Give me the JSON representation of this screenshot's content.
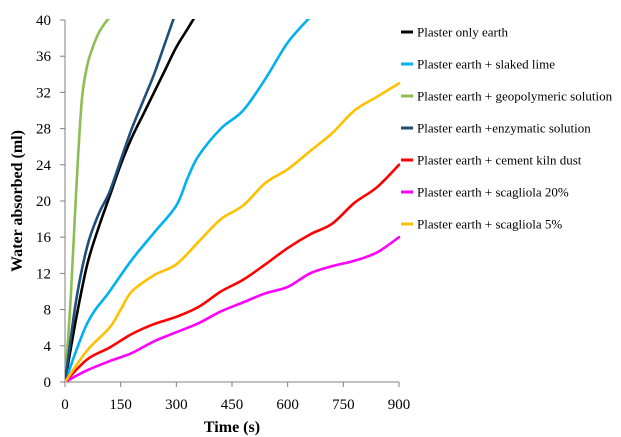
{
  "chart_data": {
    "type": "line",
    "title": "",
    "xlabel": "Time (s)",
    "ylabel": "Water absorbed (ml)",
    "xlim": [
      0,
      900
    ],
    "ylim": [
      0,
      40
    ],
    "xticks": [
      0,
      150,
      300,
      450,
      600,
      750,
      900
    ],
    "yticks": [
      0,
      4,
      8,
      12,
      16,
      20,
      24,
      28,
      32,
      36,
      40
    ],
    "grid": false,
    "legend_position": "right",
    "series": [
      {
        "name": "Plaster only earth",
        "color": "#000000",
        "x": [
          0,
          30,
          60,
          90,
          120,
          150,
          180,
          210,
          240,
          270,
          300,
          330,
          360
        ],
        "y": [
          0,
          7,
          13,
          17,
          20.5,
          24,
          27,
          29.5,
          32,
          34.5,
          37,
          39,
          41
        ]
      },
      {
        "name": "Plaster earth + slaked lime",
        "color": "#00B0F0",
        "x": [
          0,
          60,
          120,
          180,
          240,
          300,
          330,
          360,
          420,
          480,
          540,
          600,
          660
        ],
        "y": [
          0,
          6.5,
          10,
          13.5,
          16.5,
          19.5,
          22.5,
          25,
          28,
          30,
          33.5,
          37.5,
          40.3
        ]
      },
      {
        "name": "Plaster earth + geopolymeric solution",
        "color": "#8CBF52",
        "x": [
          0,
          15,
          30,
          45,
          60,
          75,
          90,
          105,
          120
        ],
        "y": [
          0,
          9,
          21,
          31,
          35,
          37,
          38.5,
          39.5,
          40.3
        ]
      },
      {
        "name": "Plaster earth +enzymatic solution",
        "color": "#1F4E79",
        "x": [
          0,
          30,
          60,
          90,
          120,
          150,
          180,
          210,
          240,
          270,
          300
        ],
        "y": [
          0,
          9,
          15,
          18.5,
          21,
          24.5,
          28,
          31,
          34,
          37.5,
          41
        ]
      },
      {
        "name": "Plaster earth + cement kiln dust",
        "color": "#FF0000",
        "x": [
          0,
          60,
          120,
          180,
          240,
          300,
          360,
          420,
          480,
          540,
          600,
          660,
          720,
          780,
          840,
          900
        ],
        "y": [
          0,
          2.5,
          3.8,
          5.3,
          6.4,
          7.2,
          8.3,
          10,
          11.3,
          13,
          14.8,
          16.3,
          17.5,
          19.8,
          21.5,
          24
        ]
      },
      {
        "name": "Plaster earth + scagliola 20%",
        "color": "#FF00FF",
        "x": [
          0,
          60,
          120,
          180,
          240,
          300,
          360,
          420,
          480,
          540,
          600,
          660,
          720,
          780,
          840,
          900
        ],
        "y": [
          0,
          1.3,
          2.3,
          3.2,
          4.5,
          5.5,
          6.5,
          7.8,
          8.8,
          9.8,
          10.5,
          12,
          12.8,
          13.4,
          14.3,
          16
        ]
      },
      {
        "name": "Plaster earth + scagliola 5%",
        "color": "#FFC000",
        "x": [
          0,
          60,
          120,
          150,
          180,
          240,
          300,
          360,
          420,
          480,
          540,
          600,
          660,
          720,
          780,
          840,
          900
        ],
        "y": [
          0,
          3.5,
          6,
          8,
          10,
          11.8,
          13,
          15.5,
          18,
          19.5,
          22,
          23.5,
          25.5,
          27.5,
          30,
          31.5,
          33
        ]
      }
    ]
  }
}
